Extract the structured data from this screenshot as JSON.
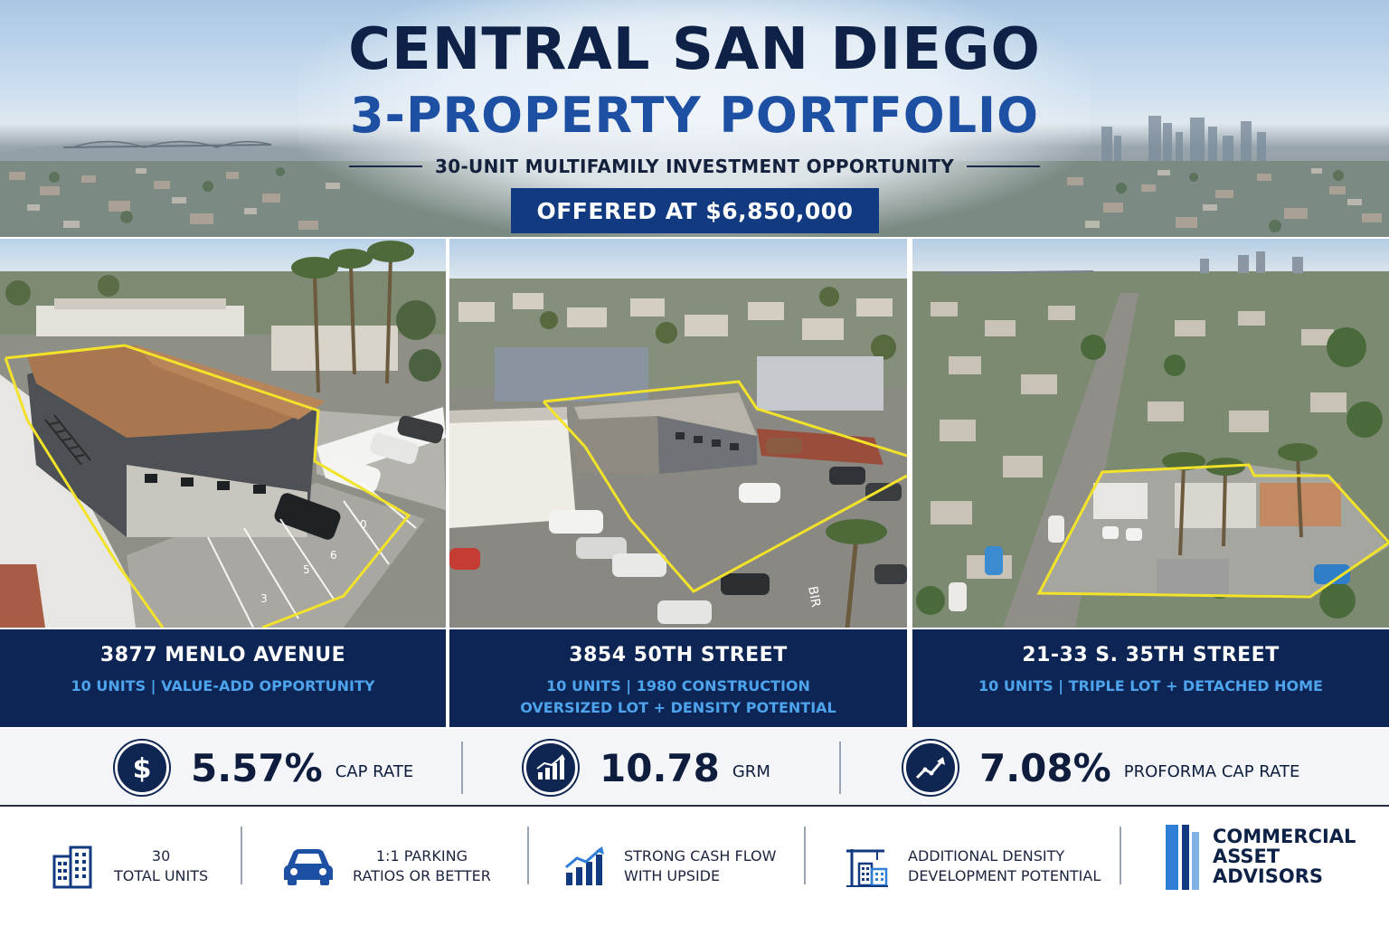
{
  "header": {
    "title_line1": "CENTRAL SAN DIEGO",
    "title_line2": "3-PROPERTY PORTFOLIO",
    "subtitle": "30-UNIT MULTIFAMILY INVESTMENT OPPORTUNITY",
    "price": "OFFERED AT $6,850,000"
  },
  "properties": [
    {
      "name": "3877 MENLO AVENUE",
      "desc_line1": "10 UNITS | VALUE-ADD OPPORTUNITY",
      "desc_line2": ""
    },
    {
      "name": "3854 50TH STREET",
      "desc_line1": "10 UNITS | 1980 CONSTRUCTION",
      "desc_line2": "OVERSIZED LOT + DENSITY POTENTIAL"
    },
    {
      "name": "21-33 S. 35TH STREET",
      "desc_line1": "10 UNITS | TRIPLE LOT + DETACHED HOME",
      "desc_line2": ""
    }
  ],
  "metrics": [
    {
      "icon": "dollar-icon",
      "value": "5.57%",
      "label": "CAP RATE"
    },
    {
      "icon": "growth-chart-icon",
      "value": "10.78",
      "label": "GRM"
    },
    {
      "icon": "trend-up-icon",
      "value": "7.08%",
      "label": "PROFORMA CAP RATE"
    }
  ],
  "features": [
    {
      "icon": "building-icon",
      "line1": "30",
      "line2": "TOTAL UNITS"
    },
    {
      "icon": "car-icon",
      "line1": "1:1 PARKING",
      "line2": "RATIOS OR BETTER"
    },
    {
      "icon": "bar-chart-up-icon",
      "line1": "STRONG CASH FLOW",
      "line2": "WITH UPSIDE"
    },
    {
      "icon": "crane-building-icon",
      "line1": "ADDITIONAL DENSITY",
      "line2": "DEVELOPMENT POTENTIAL"
    }
  ],
  "logo": {
    "line1": "COMMERCIAL",
    "line2": "ASSET",
    "line3": "ADVISORS"
  },
  "photo_overlays": {
    "parking_numbers_1": [
      "3",
      "5",
      "6",
      "0"
    ],
    "street_marking_2": "BIR"
  },
  "colors": {
    "navy": "#0d2554",
    "brand_blue": "#1d4fa3",
    "accent_light_blue": "#4da3ec",
    "boundary_yellow": "#f2e32a"
  }
}
